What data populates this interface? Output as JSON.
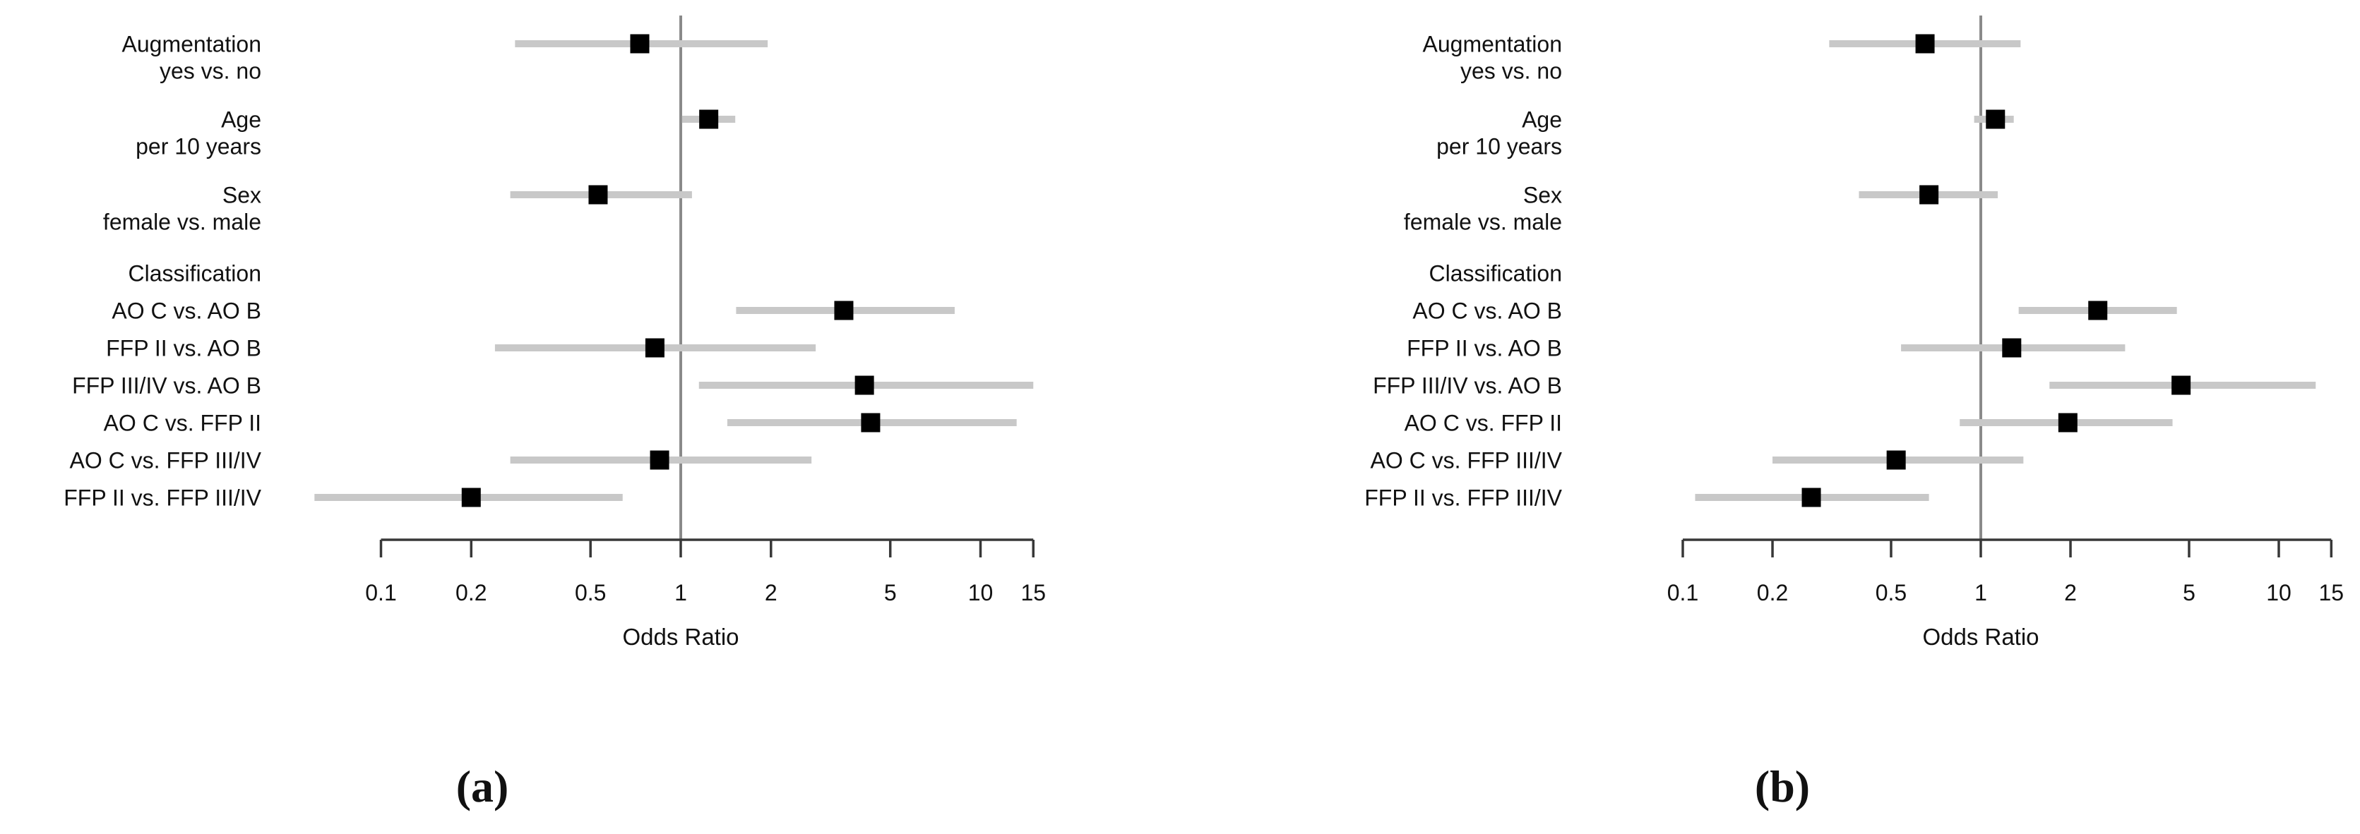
{
  "figure": {
    "background_color": "#ffffff",
    "ci_bar_color": "#c8c8c8",
    "point_color": "#000000",
    "reference_line_color": "#8a8a8a",
    "axis_color": "#383838",
    "text_color": "#111111"
  },
  "chart_data": [
    {
      "type": "forest",
      "panel": "a",
      "caption": "(a)",
      "xlabel": "Odds Ratio",
      "scale": "log10",
      "xlim": [
        0.1,
        15
      ],
      "x_ticks": [
        "0.1",
        "0.2",
        "0.5",
        "1",
        "2",
        "5",
        "10",
        "15"
      ],
      "x_tick_values": [
        0.1,
        0.2,
        0.5,
        1,
        2,
        5,
        10,
        15
      ],
      "reference_line": 1,
      "grid": false,
      "rows": [
        {
          "label": "Augmentation",
          "sublabel": "yes vs. no",
          "or": 0.73,
          "ci_low": 0.28,
          "ci_high": 1.95
        },
        {
          "label": "Age",
          "sublabel": "per 10 years",
          "or": 1.24,
          "ci_low": 1.01,
          "ci_high": 1.52
        },
        {
          "label": "Sex",
          "sublabel": "female vs. male",
          "or": 0.53,
          "ci_low": 0.27,
          "ci_high": 1.09
        },
        {
          "label": "Classification",
          "header": true
        },
        {
          "label": "AO C vs. AO B",
          "or": 3.5,
          "ci_low": 1.53,
          "ci_high": 8.2
        },
        {
          "label": "FFP II vs. AO B",
          "or": 0.82,
          "ci_low": 0.24,
          "ci_high": 2.82
        },
        {
          "label": "FFP III/IV vs. AO B",
          "or": 4.1,
          "ci_low": 1.15,
          "ci_high": 15.0
        },
        {
          "label": "AO C vs. FFP II",
          "or": 4.3,
          "ci_low": 1.43,
          "ci_high": 13.2
        },
        {
          "label": "AO C vs. FFP III/IV",
          "or": 0.85,
          "ci_low": 0.27,
          "ci_high": 2.73
        },
        {
          "label": "FFP II vs. FFP III/IV",
          "or": 0.2,
          "ci_low": 0.06,
          "ci_high": 0.64
        }
      ]
    },
    {
      "type": "forest",
      "panel": "b",
      "caption": "(b)",
      "xlabel": "Odds Ratio",
      "scale": "log10",
      "xlim": [
        0.1,
        15
      ],
      "x_ticks": [
        "0.1",
        "0.2",
        "0.5",
        "1",
        "2",
        "5",
        "10",
        "15"
      ],
      "x_tick_values": [
        0.1,
        0.2,
        0.5,
        1,
        2,
        5,
        10,
        15
      ],
      "reference_line": 1,
      "grid": false,
      "rows": [
        {
          "label": "Augmentation",
          "sublabel": "yes vs. no",
          "or": 0.65,
          "ci_low": 0.31,
          "ci_high": 1.36
        },
        {
          "label": "Age",
          "sublabel": "per 10 years",
          "or": 1.12,
          "ci_low": 0.95,
          "ci_high": 1.29
        },
        {
          "label": "Sex",
          "sublabel": "female vs. male",
          "or": 0.67,
          "ci_low": 0.39,
          "ci_high": 1.14
        },
        {
          "label": "Classification",
          "header": true
        },
        {
          "label": "AO C vs. AO B",
          "or": 2.47,
          "ci_low": 1.34,
          "ci_high": 4.55
        },
        {
          "label": "FFP II vs. AO B",
          "or": 1.27,
          "ci_low": 0.54,
          "ci_high": 3.05
        },
        {
          "label": "FFP III/IV vs. AO B",
          "or": 4.7,
          "ci_low": 1.7,
          "ci_high": 13.3
        },
        {
          "label": "AO C vs. FFP II",
          "or": 1.96,
          "ci_low": 0.85,
          "ci_high": 4.4
        },
        {
          "label": "AO C vs. FFP III/IV",
          "or": 0.52,
          "ci_low": 0.2,
          "ci_high": 1.39
        },
        {
          "label": "FFP II vs. FFP III/IV",
          "or": 0.27,
          "ci_low": 0.11,
          "ci_high": 0.67
        }
      ]
    }
  ]
}
